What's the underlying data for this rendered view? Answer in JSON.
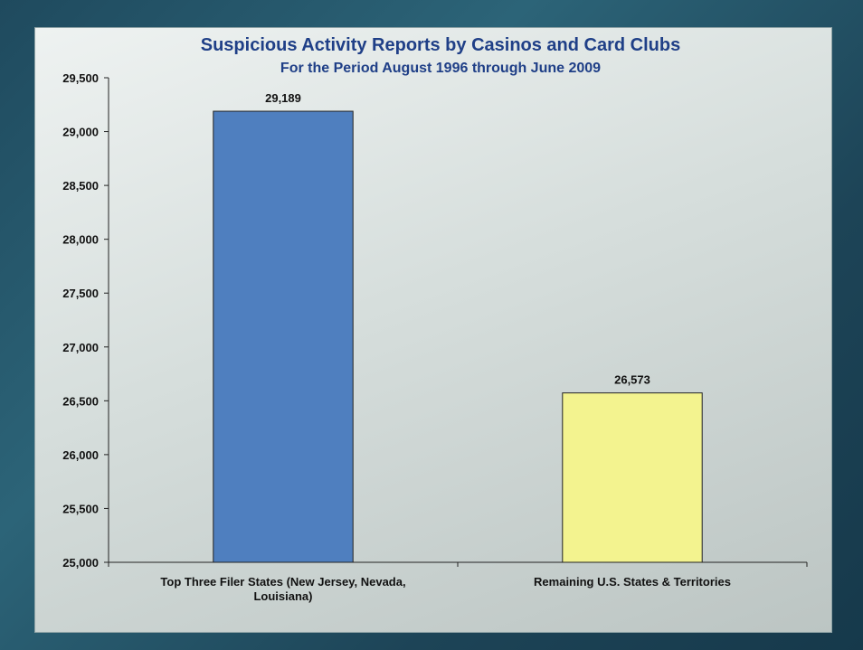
{
  "chart_data": {
    "type": "bar",
    "title": "Suspicious Activity Reports by Casinos and Card Clubs",
    "subtitle": "For the Period August 1996 through June 2009",
    "categories": [
      [
        "Top Three Filer States (New Jersey, Nevada,",
        "Louisiana)"
      ],
      [
        "Remaining U.S. States & Territories"
      ]
    ],
    "values": [
      29189,
      26573
    ],
    "data_labels": [
      "29,189",
      "26,573"
    ],
    "colors": [
      "#4f7fbf",
      "#f3f38f"
    ],
    "ylim": [
      25000,
      29500
    ],
    "yticks": [
      25000,
      25500,
      26000,
      26500,
      27000,
      27500,
      28000,
      28500,
      29000,
      29500
    ],
    "ytick_labels": [
      "25,000",
      "25,500",
      "26,000",
      "26,500",
      "27,000",
      "27,500",
      "28,000",
      "28,500",
      "29,000",
      "29,500"
    ],
    "xlabel": "",
    "ylabel": "",
    "grid": false,
    "legend": "none"
  }
}
